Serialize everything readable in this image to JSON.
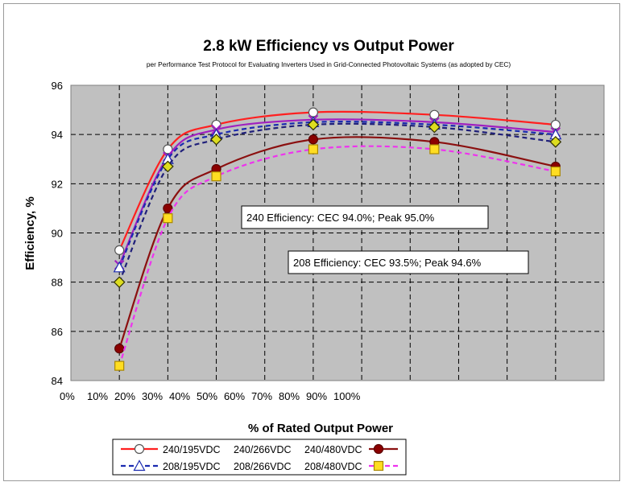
{
  "chart_data": {
    "type": "line",
    "title": "2.8 kW Efficiency vs Output Power",
    "subtitle": "per Performance Test Protocol for Evaluating Inverters Used in Grid-Connected Photovoltaic Systems (as adopted by CEC)",
    "xlabel": "% of Rated Output Power",
    "ylabel": "Efficiency, %",
    "ylim": [
      84,
      96
    ],
    "y_ticks": [
      84,
      86,
      88,
      90,
      92,
      94,
      96
    ],
    "x_tick_labels": [
      "0%",
      "10%",
      "20%",
      "30%",
      "40%",
      "50%",
      "60%",
      "70%",
      "80%",
      "90%",
      "100%"
    ],
    "grid": true,
    "legend_position": "bottom",
    "annotations": [
      "240 Efficiency: CEC 94.0%; Peak 95.0%",
      "208 Efficiency: CEC 93.5%; Peak 94.6%"
    ],
    "x": [
      10,
      20,
      30,
      50,
      75,
      100
    ],
    "series": [
      {
        "name": "240/195VDC",
        "color": "#ff2020",
        "dash": "solid",
        "marker": "circle",
        "marker_fill": "#ffffff",
        "marker_stroke": "#555555",
        "values": [
          89.3,
          93.4,
          94.4,
          94.9,
          94.8,
          94.4
        ]
      },
      {
        "name": "240/266VDC",
        "color": "#a020c0",
        "dash": "solid",
        "marker": "x",
        "marker_fill": "#a020c0",
        "marker_stroke": "#a020c0",
        "values": [
          88.7,
          93.1,
          94.2,
          94.6,
          94.5,
          94.1
        ]
      },
      {
        "name": "240/480VDC",
        "color": "#8b1010",
        "dash": "solid",
        "marker": "circle",
        "marker_fill": "#8b0000",
        "marker_stroke": "#5a0000",
        "values": [
          85.3,
          91.0,
          92.6,
          93.8,
          93.7,
          92.7
        ]
      },
      {
        "name": "208/195VDC",
        "color": "#1a2ab0",
        "dash": "dashed",
        "marker": "triangle",
        "marker_fill": "#ffffff",
        "marker_stroke": "#1a2ab0",
        "values": [
          88.6,
          93.0,
          94.0,
          94.5,
          94.4,
          94.0
        ]
      },
      {
        "name": "208/266VDC",
        "color": "#20207a",
        "dash": "dashed",
        "marker": "diamond",
        "marker_fill": "#dddd20",
        "marker_stroke": "#303000",
        "values": [
          88.0,
          92.7,
          93.8,
          94.4,
          94.3,
          93.7
        ]
      },
      {
        "name": "208/480VDC",
        "color": "#ee33ee",
        "dash": "dashed",
        "marker": "square",
        "marker_fill": "#ffdd22",
        "marker_stroke": "#aa8800",
        "values": [
          84.6,
          90.6,
          92.3,
          93.4,
          93.4,
          92.5
        ]
      }
    ]
  }
}
